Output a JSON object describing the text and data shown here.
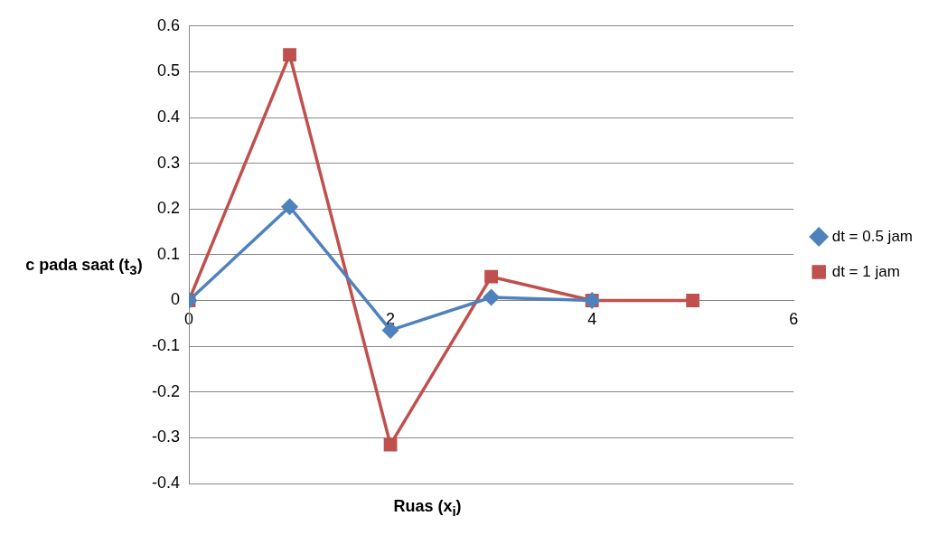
{
  "chart_data": {
    "type": "line",
    "xlabel": "Ruas (x$_{i}$)",
    "ylabel": "c pada saat (t$_{3}$)",
    "x": [
      0,
      1,
      2,
      3,
      4,
      5
    ],
    "series": [
      {
        "name": "dt = 0.5 jam",
        "color": "#4f81bd",
        "marker": "diamond",
        "x": [
          0,
          1,
          2,
          3,
          4
        ],
        "values": [
          0,
          0.205,
          -0.065,
          0.007,
          0
        ]
      },
      {
        "name": "dt = 1 jam",
        "color": "#c0504d",
        "marker": "square",
        "values": [
          0,
          0.537,
          -0.315,
          0.052,
          0,
          0
        ]
      }
    ],
    "xlim": [
      0,
      6
    ],
    "xticks": [
      0,
      2,
      4,
      6
    ],
    "ylim": [
      -0.4,
      0.6
    ],
    "yticks": [
      -0.4,
      -0.3,
      -0.2,
      -0.1,
      0,
      0.1,
      0.2,
      0.3,
      0.4,
      0.5,
      0.6
    ],
    "grid": "y",
    "legend": "right"
  }
}
